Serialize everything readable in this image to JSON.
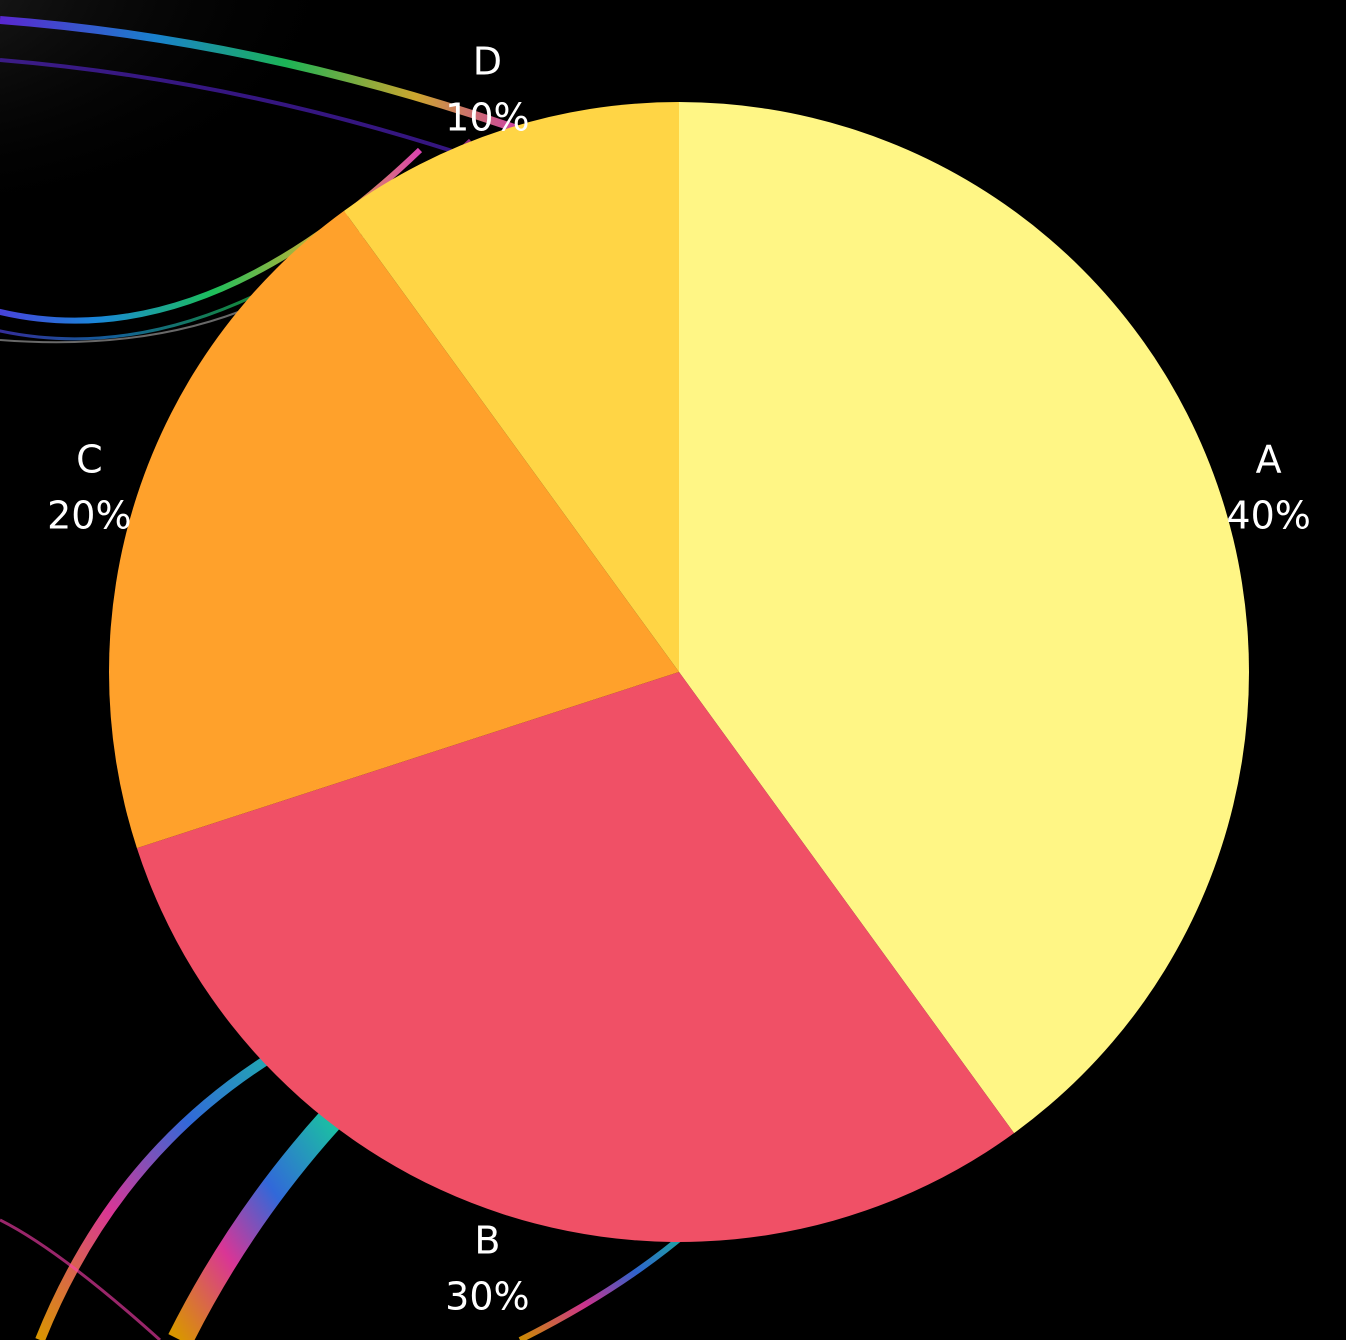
{
  "chart_data": {
    "type": "pie",
    "title": "",
    "categories": [
      "A",
      "B",
      "C",
      "D"
    ],
    "values": [
      40,
      30,
      20,
      10
    ],
    "percent_labels": [
      "40%",
      "30%",
      "20%",
      "10%"
    ],
    "colors": [
      "#FFF685",
      "#F05066",
      "#FFA12B",
      "#FFD545"
    ],
    "start_angle_deg": 0,
    "direction": "clockwise",
    "background_color": "#000000",
    "label_color": "#FFFFFF"
  }
}
